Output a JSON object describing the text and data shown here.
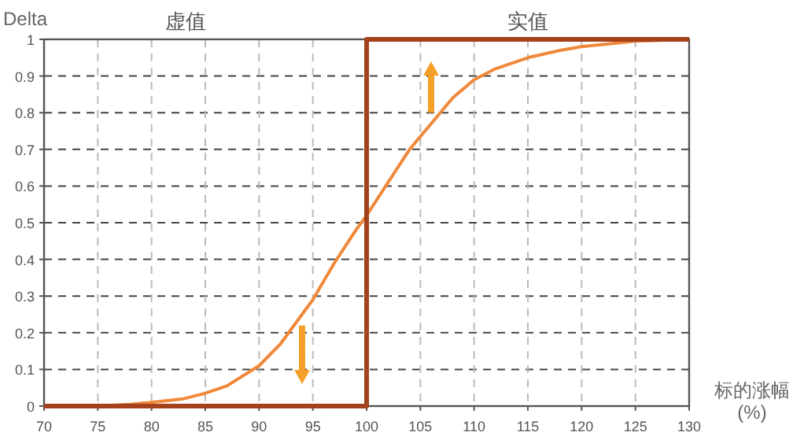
{
  "chart_data": {
    "type": "line",
    "ylabel": "Delta",
    "xlabel": "标的涨幅\n(%)",
    "annotations": [
      "虚值",
      "实值"
    ],
    "xlim": [
      70,
      130
    ],
    "xticks": [
      70,
      75,
      80,
      85,
      90,
      95,
      100,
      105,
      110,
      115,
      120,
      125,
      130
    ],
    "ylim": [
      0,
      1
    ],
    "yticks": [
      0,
      0.1,
      0.2,
      0.3,
      0.4,
      0.5,
      0.6,
      0.7,
      0.8,
      0.9,
      1
    ],
    "grid": true,
    "marker": "none",
    "line_style": "solid",
    "series": [
      {
        "color": "#f0883a",
        "x": [
          75,
          78,
          80,
          83,
          85,
          87,
          90,
          92,
          94,
          95,
          97,
          99,
          100,
          102,
          104,
          106,
          108,
          110,
          112,
          115,
          118,
          120,
          125,
          130
        ],
        "values": [
          0,
          0.005,
          0.01,
          0.02,
          0.035,
          0.055,
          0.11,
          0.17,
          0.25,
          0.29,
          0.39,
          0.48,
          0.52,
          0.61,
          0.7,
          0.77,
          0.84,
          0.89,
          0.92,
          0.95,
          0.97,
          0.98,
          0.995,
          1
        ]
      },
      {
        "color": "#a3421c",
        "x": [
          70,
          100,
          100,
          130
        ],
        "values": [
          0,
          0,
          1,
          1
        ]
      }
    ]
  }
}
